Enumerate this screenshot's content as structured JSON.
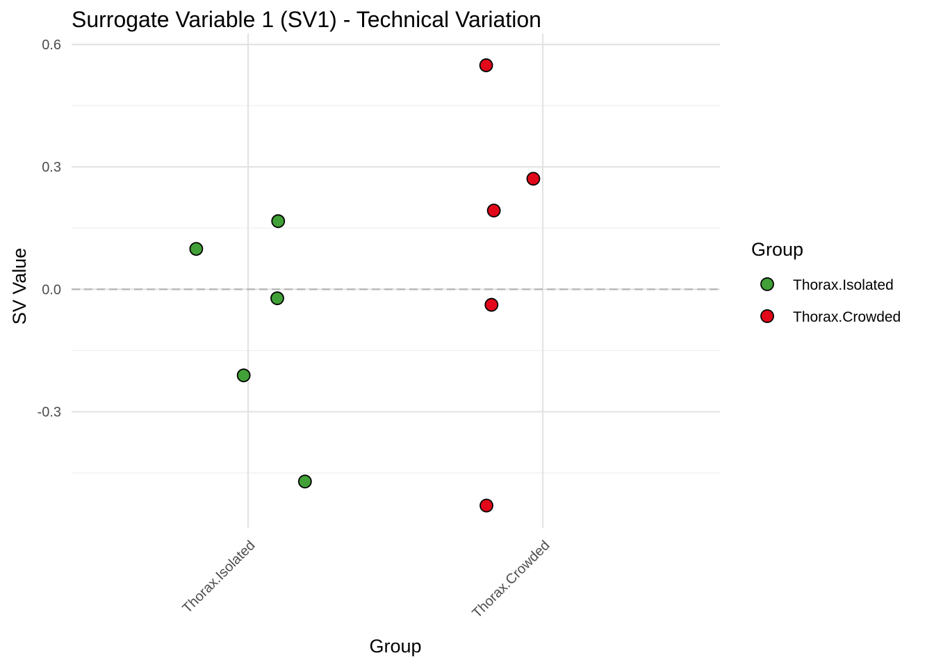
{
  "chart_data": {
    "type": "scatter",
    "title": "Surrogate Variable 1 (SV1) - Technical Variation",
    "xlabel": "Group",
    "ylabel": "SV Value",
    "categories": [
      "Thorax.Isolated",
      "Thorax.Crowded"
    ],
    "ylim": [
      -0.58,
      0.6
    ],
    "yticks": [
      0.6,
      0.3,
      0.0,
      -0.3
    ],
    "ytick_labels": [
      "0.6",
      "0.3",
      "0.0",
      "-0.3"
    ],
    "yminor": [
      0.45,
      0.15,
      -0.15,
      -0.45
    ],
    "hline": 0.0,
    "grid": true,
    "legend": {
      "title": "Group",
      "placement": "right",
      "entries": [
        "Thorax.Isolated",
        "Thorax.Crowded"
      ]
    },
    "colors": {
      "Thorax.Isolated": "#41a037",
      "Thorax.Crowded": "#e2081a"
    },
    "series": [
      {
        "name": "Thorax.Isolated",
        "points": [
          {
            "x": "Thorax.Isolated",
            "jitter": -0.176,
            "y": 0.099
          },
          {
            "x": "Thorax.Isolated",
            "jitter": 0.102,
            "y": 0.167
          },
          {
            "x": "Thorax.Isolated",
            "jitter": 0.099,
            "y": -0.022
          },
          {
            "x": "Thorax.Isolated",
            "jitter": -0.015,
            "y": -0.211
          },
          {
            "x": "Thorax.Isolated",
            "jitter": 0.193,
            "y": -0.471
          }
        ]
      },
      {
        "name": "Thorax.Crowded",
        "points": [
          {
            "x": "Thorax.Crowded",
            "jitter": -0.192,
            "y": 0.549
          },
          {
            "x": "Thorax.Crowded",
            "jitter": -0.032,
            "y": 0.271
          },
          {
            "x": "Thorax.Crowded",
            "jitter": -0.166,
            "y": 0.193
          },
          {
            "x": "Thorax.Crowded",
            "jitter": -0.174,
            "y": -0.038
          },
          {
            "x": "Thorax.Crowded",
            "jitter": -0.191,
            "y": -0.53
          }
        ]
      }
    ]
  }
}
